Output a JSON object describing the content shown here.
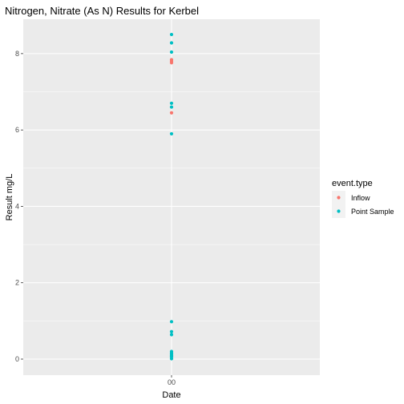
{
  "chart_data": {
    "type": "scatter",
    "title": "Nitrogen, Nitrate (As N) Results for Kerbel",
    "xlabel": "Date",
    "ylabel": "Result mg/L",
    "x_ticks": [
      "00"
    ],
    "y_ticks": [
      0,
      2,
      4,
      6,
      8
    ],
    "ylim": [
      -0.42,
      8.9
    ],
    "grid": true,
    "legend": {
      "title": "event.type",
      "position": "right"
    },
    "series": [
      {
        "name": "Inflow",
        "color": "#F8766D",
        "x": [
          "00",
          "00",
          "00",
          "00"
        ],
        "values": [
          7.84,
          7.8,
          7.76,
          6.45
        ]
      },
      {
        "name": "Point Sample",
        "color": "#00BFC4",
        "x": [
          "00",
          "00",
          "00",
          "00",
          "00",
          "00",
          "00",
          "00",
          "00",
          "00",
          "00",
          "00",
          "00",
          "00",
          "00",
          "00"
        ],
        "values": [
          8.5,
          8.28,
          8.04,
          6.7,
          6.6,
          5.9,
          0.98,
          0.72,
          0.64,
          0.2,
          0.16,
          0.13,
          0.1,
          0.08,
          0.06,
          0.01
        ]
      }
    ]
  }
}
